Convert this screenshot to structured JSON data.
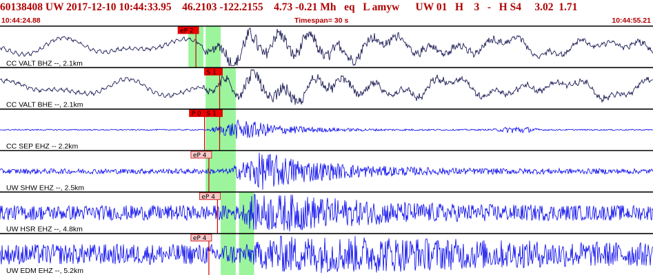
{
  "header": {
    "event_id": "60138408",
    "network": "UW",
    "origin_date": "2017-12-10",
    "origin_time": "10:44:33.95",
    "latitude": "46.2103",
    "longitude": "-122.2155",
    "depth": "4.73",
    "magnitude": "-0.21",
    "mag_type": "Mh",
    "event_type": "eq",
    "location_flag": "L",
    "analyst": "amyw",
    "source": "UW",
    "version": "01",
    "flag_h": "H",
    "num_picks": "3",
    "dash": "-",
    "quality": "H",
    "stat": "S4",
    "rms": "3.02",
    "gap_val": "1.71"
  },
  "subheader": {
    "start_time": "10:44:24.88",
    "timespan": "Timespan=  30 s",
    "end_time": "10:44:55.21"
  },
  "colors": {
    "header_text": "#b00000",
    "pick_red_fill": "#ee0000",
    "pick_pink_fill": "#f8c8c8",
    "pick_line": "#cc0000",
    "highlight_green": "#9cf59c",
    "trace_dark": "#1a1a55",
    "trace_blue": "#0000ee",
    "separator": "#000000"
  },
  "chart_data": {
    "type": "line",
    "time_span_s": 30.33,
    "start_time": "10:44:24.88",
    "end_time": "10:44:55.21",
    "channels": [
      {
        "label": "CC VALT BHZ --, 2.1km",
        "color": "#1a1a55",
        "style": "broadband",
        "picks": [
          {
            "label": "eP 2",
            "time_s": 9.1,
            "style": "red"
          }
        ],
        "windows": [
          [
            8.75,
            9.45
          ],
          [
            9.55,
            10.25
          ]
        ],
        "signal": {
          "onset_s": 9.3,
          "peak_s": 11.0,
          "noise": 0.22,
          "amp": 0.95,
          "decay_s": 6.0,
          "f_hi": 3.6
        }
      },
      {
        "label": "CC VALT BHE --, 2.1km",
        "color": "#1a1a55",
        "style": "broadband",
        "picks": [
          {
            "label": "S 1",
            "time_s": 10.2,
            "style": "red"
          }
        ],
        "windows": [
          [
            9.55,
            10.25
          ],
          [
            10.25,
            10.95
          ]
        ],
        "signal": {
          "onset_s": 9.3,
          "peak_s": 11.2,
          "noise": 0.22,
          "amp": 0.7,
          "decay_s": 6.5,
          "f_hi": 3.6
        }
      },
      {
        "label": "CC SEP EHZ -- 2.2km",
        "color": "#0000ee",
        "style": "shortperiod",
        "picks": [
          {
            "label": "P 0",
            "time_s": 9.5,
            "style": "red"
          },
          {
            "label": "S 1",
            "time_s": 10.2,
            "style": "red"
          }
        ],
        "windows": [
          [
            9.55,
            10.25
          ],
          [
            10.25,
            10.95
          ]
        ],
        "signal": {
          "onset_s": 9.6,
          "peak_s": 11.2,
          "noise": 0.03,
          "amp": 0.55,
          "decay_s": 2.2,
          "f_hi": 12.0
        },
        "extra_bursts": [
          {
            "time_s": 24.0,
            "amp": 0.18,
            "dur_s": 0.8
          }
        ]
      },
      {
        "label": "UW SHW EHZ --, 2.5km",
        "color": "#0000ee",
        "style": "shortperiod",
        "picks": [
          {
            "label": "eP 4",
            "time_s": 9.7,
            "style": "pink"
          }
        ],
        "windows": [
          [
            9.55,
            10.25
          ],
          [
            10.25,
            10.95
          ]
        ],
        "signal": {
          "onset_s": 10.6,
          "peak_s": 12.2,
          "noise": 0.14,
          "amp": 0.95,
          "decay_s": 3.0,
          "f_hi": 11.0
        }
      },
      {
        "label": "UW HSR EHZ --, 4.8km",
        "color": "#0000ee",
        "style": "shortperiod",
        "picks": [
          {
            "label": "eP 4",
            "time_s": 10.1,
            "style": "pink"
          }
        ],
        "windows": [
          [
            10.25,
            10.95
          ],
          [
            11.1,
            11.8
          ]
        ],
        "signal": {
          "onset_s": 11.2,
          "peak_s": 12.0,
          "noise": 0.4,
          "amp": 0.95,
          "decay_s": 4.0,
          "f_hi": 11.0
        }
      },
      {
        "label": "UW EDM EHZ --, 5.2km",
        "color": "#0000ee",
        "style": "shortperiod",
        "picks": [
          {
            "label": "eP 4",
            "time_s": 9.7,
            "style": "pink"
          }
        ],
        "windows": [
          [
            10.25,
            10.95
          ],
          [
            11.1,
            11.8
          ]
        ],
        "signal": {
          "onset_s": 11.6,
          "peak_s": 13.5,
          "noise": 0.55,
          "amp": 0.75,
          "decay_s": 8.0,
          "f_hi": 11.0
        }
      }
    ]
  }
}
